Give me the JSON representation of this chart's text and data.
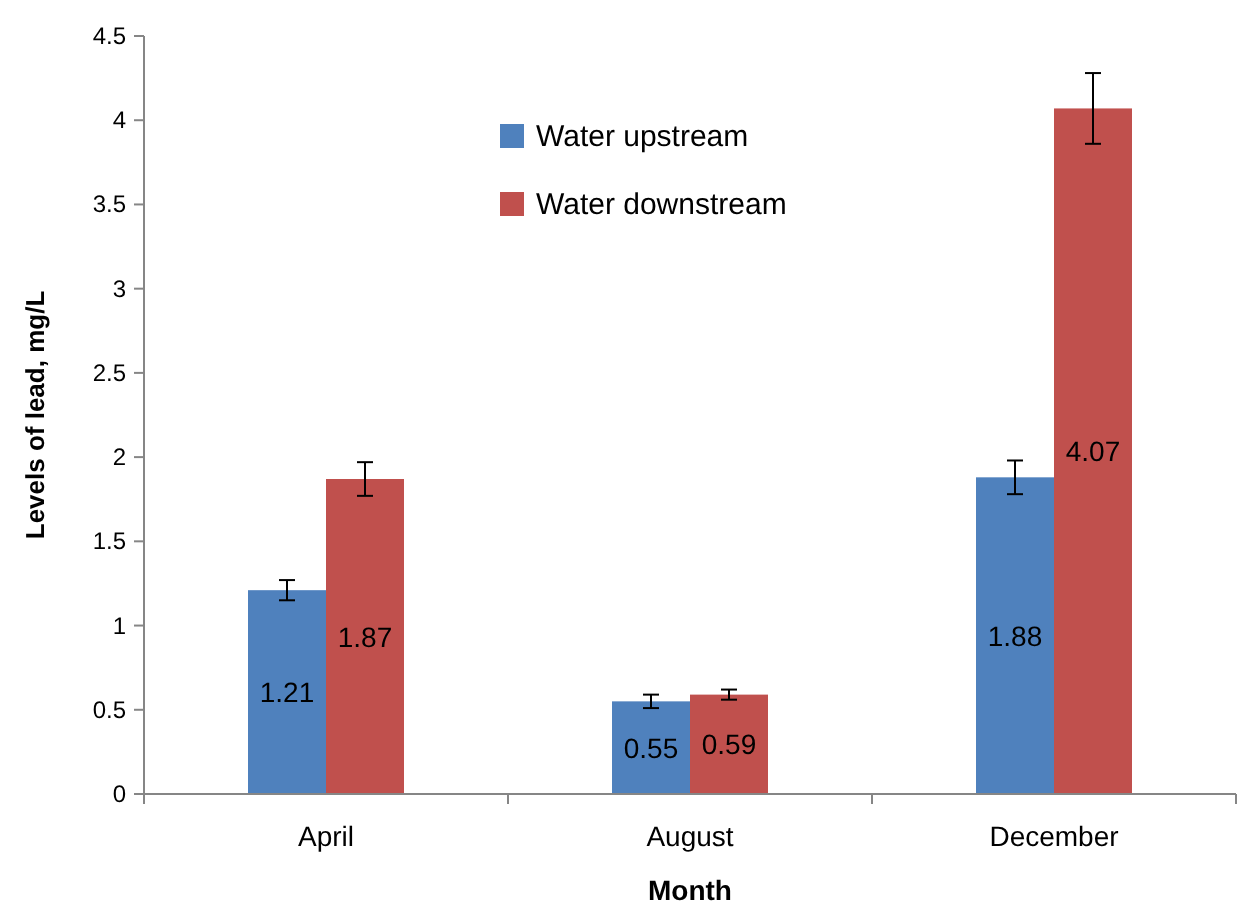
{
  "chart_data": {
    "type": "bar",
    "xlabel": "Month",
    "ylabel": "Levels of lead, mg/L",
    "categories": [
      "April",
      "August",
      "December"
    ],
    "series": [
      {
        "name": "Water upstream",
        "color": "#4f81bd",
        "values": [
          1.21,
          0.55,
          1.88
        ],
        "errors": [
          0.06,
          0.04,
          0.1
        ]
      },
      {
        "name": "Water downstream",
        "color": "#c0504d",
        "values": [
          1.87,
          0.59,
          4.07
        ],
        "errors": [
          0.1,
          0.03,
          0.21
        ]
      }
    ],
    "ylim": [
      0,
      4.5
    ],
    "yticks": [
      0,
      0.5,
      1,
      1.5,
      2,
      2.5,
      3,
      3.5,
      4,
      4.5
    ],
    "grid": false,
    "legend": "top",
    "data_labels": true
  }
}
